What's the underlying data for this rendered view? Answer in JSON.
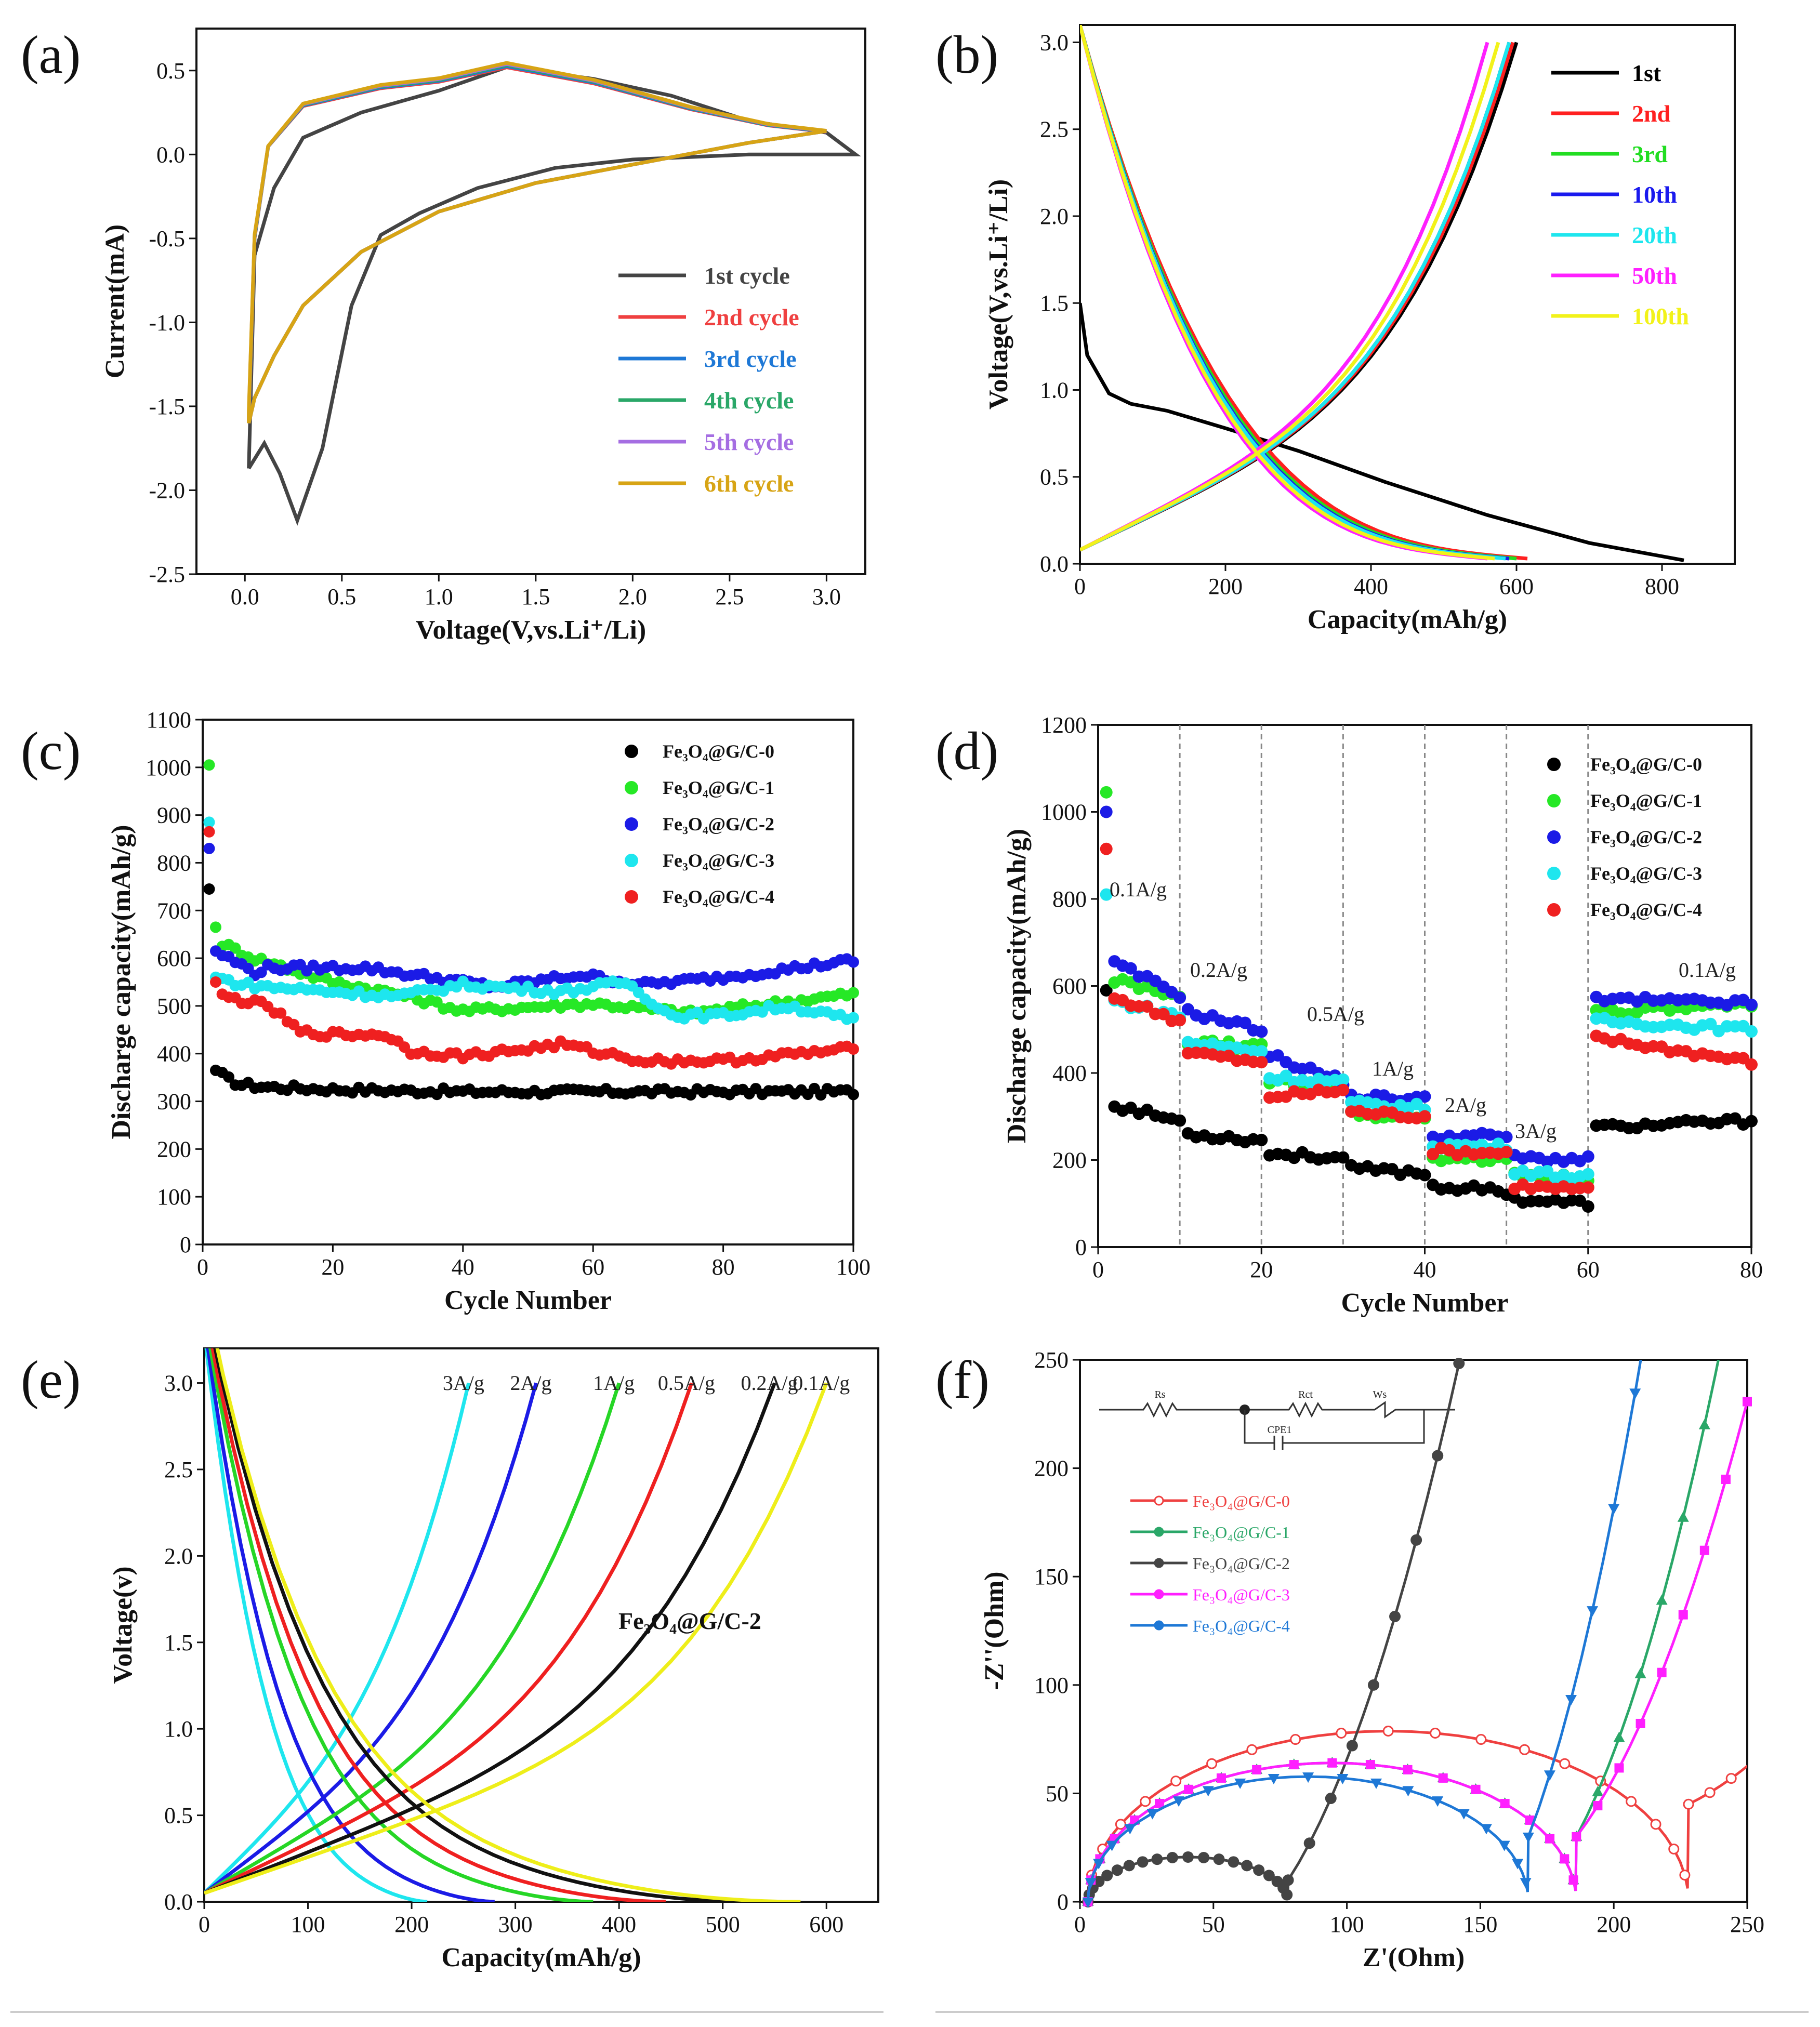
{
  "chart_data": [
    {
      "panel": "(a)",
      "type": "line",
      "xlabel": "Voltage(V,vs.Li⁺/Li)",
      "ylabel": "Current(mA)",
      "xlim": [
        -0.25,
        3.2
      ],
      "ylim": [
        -2.5,
        0.75
      ],
      "xticks": [
        "0.0",
        "0.5",
        "1.0",
        "1.5",
        "2.0",
        "2.5",
        "3.0"
      ],
      "yticks": [
        "-2.5",
        "-2.0",
        "-1.5",
        "-1.0",
        "-0.5",
        "0.0",
        "0.5"
      ],
      "series": [
        {
          "name": "1st cycle",
          "color": "#444444"
        },
        {
          "name": "2nd cycle",
          "color": "#ef4040"
        },
        {
          "name": "3rd cycle",
          "color": "#1e78d6"
        },
        {
          "name": "4th cycle",
          "color": "#2aa768"
        },
        {
          "name": "5th cycle",
          "color": "#a56ee2"
        },
        {
          "name": "6th cycle",
          "color": "#d7a415"
        }
      ]
    },
    {
      "panel": "(b)",
      "type": "line",
      "xlabel": "Capacity(mAh/g)",
      "ylabel": "Voltage(V,vs.Li⁺/Li)",
      "xlim": [
        0,
        900
      ],
      "ylim": [
        0,
        3.1
      ],
      "xticks": [
        "0",
        "200",
        "400",
        "600",
        "800"
      ],
      "yticks": [
        "0.0",
        "0.5",
        "1.0",
        "1.5",
        "2.0",
        "2.5",
        "3.0"
      ],
      "series": [
        {
          "name": "1st",
          "color": "#000000",
          "discharge_capacity": 830,
          "charge_capacity": 600
        },
        {
          "name": "2nd",
          "color": "#ff2020",
          "discharge_capacity": 615,
          "charge_capacity": 595
        },
        {
          "name": "3rd",
          "color": "#22dd22",
          "discharge_capacity": 600,
          "charge_capacity": 590
        },
        {
          "name": "10th",
          "color": "#1a1aee",
          "discharge_capacity": 590,
          "charge_capacity": 590
        },
        {
          "name": "20th",
          "color": "#1ee6ee",
          "discharge_capacity": 585,
          "charge_capacity": 590
        },
        {
          "name": "50th",
          "color": "#ff20ff",
          "discharge_capacity": 560,
          "charge_capacity": 560
        },
        {
          "name": "100th",
          "color": "#f2f21a",
          "discharge_capacity": 570,
          "charge_capacity": 575
        }
      ]
    },
    {
      "panel": "(c)",
      "type": "scatter",
      "xlabel": "Cycle Number",
      "ylabel": "Discharge capacity(mAh/g)",
      "xlim": [
        0,
        100
      ],
      "ylim": [
        0,
        1100
      ],
      "xticks": [
        "0",
        "20",
        "40",
        "60",
        "80",
        "100"
      ],
      "yticks": [
        "0",
        "100",
        "200",
        "300",
        "400",
        "500",
        "600",
        "700",
        "800",
        "900",
        "1000",
        "1100"
      ],
      "series": [
        {
          "name": "Fe₃O₄@G/C-0",
          "color": "#000000",
          "knots": [
            [
              1,
              745
            ],
            [
              2,
              365
            ],
            [
              4,
              345
            ],
            [
              6,
              335
            ],
            [
              10,
              330
            ],
            [
              20,
              325
            ],
            [
              40,
              320
            ],
            [
              100,
              320
            ]
          ]
        },
        {
          "name": "Fe₃O₄@G/C-1",
          "color": "#26e826",
          "knots": [
            [
              1,
              1005
            ],
            [
              2,
              665
            ],
            [
              3,
              630
            ],
            [
              8,
              600
            ],
            [
              20,
              550
            ],
            [
              30,
              525
            ],
            [
              40,
              490
            ],
            [
              60,
              505
            ],
            [
              75,
              485
            ],
            [
              100,
              525
            ]
          ]
        },
        {
          "name": "Fe₃O₄@G/C-2",
          "color": "#1b1be6",
          "knots": [
            [
              1,
              830
            ],
            [
              2,
              615
            ],
            [
              4,
              600
            ],
            [
              8,
              570
            ],
            [
              10,
              580
            ],
            [
              25,
              580
            ],
            [
              40,
              550
            ],
            [
              45,
              540
            ],
            [
              58,
              565
            ],
            [
              68,
              545
            ],
            [
              80,
              560
            ],
            [
              100,
              595
            ]
          ]
        },
        {
          "name": "Fe₃O₄@G/C-3",
          "color": "#1ee6ee",
          "knots": [
            [
              1,
              885
            ],
            [
              2,
              560
            ],
            [
              6,
              545
            ],
            [
              10,
              540
            ],
            [
              30,
              520
            ],
            [
              40,
              545
            ],
            [
              55,
              530
            ],
            [
              65,
              550
            ],
            [
              72,
              480
            ],
            [
              80,
              480
            ],
            [
              90,
              500
            ],
            [
              100,
              470
            ]
          ]
        },
        {
          "name": "Fe₃O₄@G/C-4",
          "color": "#ef2020",
          "knots": [
            [
              1,
              865
            ],
            [
              2,
              550
            ],
            [
              3,
              520
            ],
            [
              10,
              500
            ],
            [
              15,
              445
            ],
            [
              20,
              440
            ],
            [
              28,
              440
            ],
            [
              32,
              405
            ],
            [
              40,
              395
            ],
            [
              50,
              410
            ],
            [
              55,
              420
            ],
            [
              60,
              405
            ],
            [
              68,
              385
            ],
            [
              80,
              385
            ],
            [
              100,
              410
            ]
          ]
        }
      ]
    },
    {
      "panel": "(d)",
      "type": "scatter",
      "xlabel": "Cycle Number",
      "ylabel": "Discharge capacity(mAh/g)",
      "xlim": [
        0,
        80
      ],
      "ylim": [
        0,
        1200
      ],
      "xticks": [
        "0",
        "20",
        "40",
        "60",
        "80"
      ],
      "yticks": [
        "0",
        "200",
        "400",
        "600",
        "800",
        "1000",
        "1200"
      ],
      "rate_labels": [
        "0.1A/g",
        "0.2A/g",
        "0.5A/g",
        "1A/g",
        "2A/g",
        "3A/g",
        "0.1A/g"
      ],
      "segment_bounds": [
        10,
        20,
        30,
        40,
        50,
        60
      ],
      "series": [
        {
          "name": "Fe₃O₄@G/C-0",
          "color": "#000000",
          "first": 590,
          "segments": [
            [
              330,
              290
            ],
            [
              260,
              245
            ],
            [
              215,
              205
            ],
            [
              180,
              170
            ],
            [
              140,
              128
            ],
            [
              110,
              100
            ],
            [
              275,
              290
            ]
          ]
        },
        {
          "name": "Fe₃O₄@G/C-1",
          "color": "#26e826",
          "first": 1045,
          "segments": [
            [
              620,
              570
            ],
            [
              470,
              460
            ],
            [
              380,
              375
            ],
            [
              305,
              295
            ],
            [
              205,
              200
            ],
            [
              165,
              160
            ],
            [
              540,
              555
            ]
          ]
        },
        {
          "name": "Fe₃O₄@G/C-2",
          "color": "#1b1be6",
          "first": 1000,
          "segments": [
            [
              660,
              580
            ],
            [
              540,
              500
            ],
            [
              440,
              380
            ],
            [
              345,
              340
            ],
            [
              255,
              255
            ],
            [
              205,
              200
            ],
            [
              570,
              560
            ]
          ]
        },
        {
          "name": "Fe₃O₄@G/C-3",
          "color": "#1ee6ee",
          "first": 810,
          "segments": [
            [
              570,
              530
            ],
            [
              470,
              450
            ],
            [
              390,
              380
            ],
            [
              330,
              320
            ],
            [
              235,
              230
            ],
            [
              175,
              160
            ],
            [
              520,
              500
            ]
          ]
        },
        {
          "name": "Fe₃O₄@G/C-4",
          "color": "#ef2020",
          "first": 915,
          "segments": [
            [
              580,
              520
            ],
            [
              450,
              420
            ],
            [
              345,
              360
            ],
            [
              310,
              300
            ],
            [
              220,
              215
            ],
            [
              140,
              130
            ],
            [
              480,
              425
            ]
          ]
        }
      ]
    },
    {
      "panel": "(e)",
      "type": "line",
      "xlabel": "Capacity(mAh/g)",
      "ylabel": "Voltage(v)",
      "xlim": [
        0,
        650
      ],
      "ylim": [
        0,
        3.2
      ],
      "xticks": [
        "0",
        "100",
        "200",
        "300",
        "400",
        "500",
        "600"
      ],
      "yticks": [
        "0.0",
        "0.5",
        "1.0",
        "1.5",
        "2.0",
        "2.5",
        "3.0"
      ],
      "annotation": "Fe₃O₄@G/C-2",
      "series": [
        {
          "name": "3A/g",
          "color": "#1ee6ee",
          "capacity": 215
        },
        {
          "name": "2A/g",
          "color": "#1b1be6",
          "capacity": 280
        },
        {
          "name": "1A/g",
          "color": "#26d626",
          "capacity": 375
        },
        {
          "name": "0.5A/g",
          "color": "#ef2020",
          "capacity": 445
        },
        {
          "name": "0.2A/g",
          "color": "#111111",
          "capacity": 525
        },
        {
          "name": "0.1A/g",
          "color": "#eeee1a",
          "capacity": 575
        }
      ]
    },
    {
      "panel": "(f)",
      "type": "line",
      "xlabel": "Z'(Ohm)",
      "ylabel": "-Z''(Ohm)",
      "xlim": [
        0,
        250
      ],
      "ylim": [
        0,
        250
      ],
      "xticks": [
        "0",
        "50",
        "100",
        "150",
        "200",
        "250"
      ],
      "yticks": [
        "0",
        "50",
        "100",
        "150",
        "200",
        "250"
      ],
      "circuit_labels": [
        "Rs",
        "Rct",
        "Ws",
        "CPE1"
      ],
      "series": [
        {
          "name": "Fe₃O₄@G/C-0",
          "color": "#ef4040",
          "marker": "open-circle",
          "rs": 3,
          "rct": 225,
          "tail_slope": 0.6
        },
        {
          "name": "Fe₃O₄@G/C-1",
          "color": "#2aa768",
          "marker": "triangle",
          "rs": 3,
          "rct": 183,
          "tail_slope": 2.3
        },
        {
          "name": "Fe₃O₄@G/C-2",
          "color": "#444444",
          "marker": "circle",
          "rs": 3,
          "rct": 75,
          "tail_slope": 1.9
        },
        {
          "name": "Fe₃O₄@G/C-3",
          "color": "#ff1fff",
          "marker": "square",
          "rs": 3,
          "rct": 183,
          "tail_slope": 1.6
        },
        {
          "name": "Fe₃O₄@G/C-4",
          "color": "#1e78d6",
          "marker": "triangle-down",
          "rs": 3,
          "rct": 165,
          "tail_slope": 3.2
        }
      ]
    }
  ]
}
